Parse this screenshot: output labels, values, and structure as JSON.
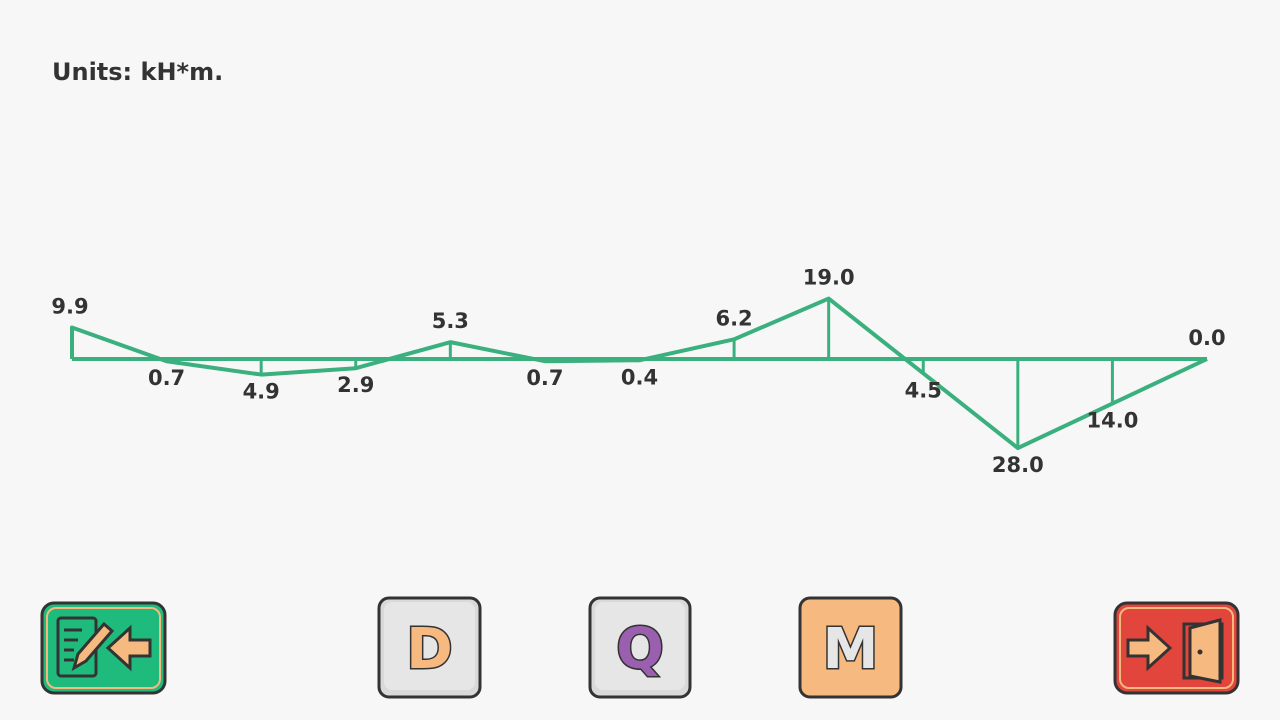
{
  "units_label": "Units: kH*m.",
  "diagram": {
    "type": "moment-diagram",
    "color": "#3bb07f",
    "values": [
      9.9,
      0.7,
      4.9,
      2.9,
      5.3,
      0.7,
      0.4,
      6.2,
      19.0,
      4.5,
      28.0,
      14.0,
      0.0
    ],
    "value_labels": [
      "9.9",
      "0.7",
      "4.9",
      "2.9",
      "5.3",
      "0.7",
      "0.4",
      "6.2",
      "19.0",
      "4.5",
      "28.0",
      "14.0",
      "0.0"
    ],
    "sides": [
      "above",
      "below",
      "below",
      "below",
      "above",
      "below",
      "below",
      "above",
      "above",
      "below",
      "below",
      "below",
      "above"
    ]
  },
  "buttons": [
    {
      "label": "D"
    },
    {
      "label": "Q"
    },
    {
      "label": "M"
    }
  ]
}
